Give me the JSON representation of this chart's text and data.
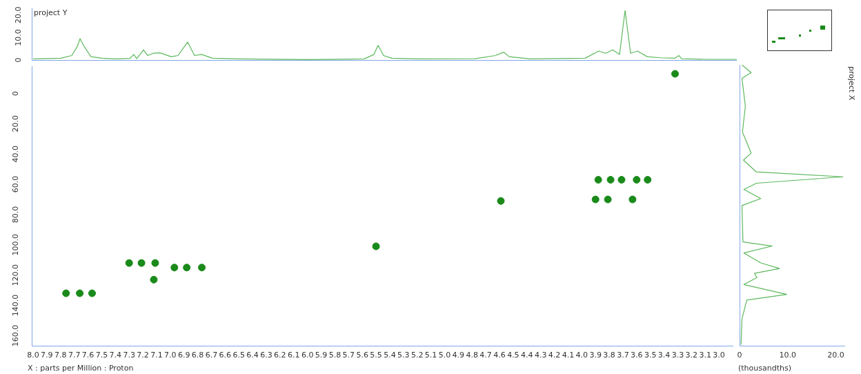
{
  "chart_data": [
    {
      "type": "line",
      "title": "project Y",
      "x": [
        8.0,
        7.8,
        7.72,
        7.68,
        7.66,
        7.63,
        7.58,
        7.5,
        7.4,
        7.3,
        7.27,
        7.25,
        7.2,
        7.17,
        7.13,
        7.08,
        7.0,
        6.95,
        6.88,
        6.83,
        6.78,
        6.7,
        6.5,
        6.0,
        5.6,
        5.53,
        5.5,
        5.46,
        5.4,
        5.2,
        4.8,
        4.65,
        4.59,
        4.55,
        4.4,
        4.0,
        3.9,
        3.85,
        3.8,
        3.75,
        3.71,
        3.67,
        3.62,
        3.55,
        3.45,
        3.35,
        3.32,
        3.3,
        3.1,
        2.9
      ],
      "series": [
        {
          "color": "#5cb85c",
          "values": [
            0.5,
            0.8,
            2,
            6,
            9.5,
            6,
            1.5,
            0.8,
            0.5,
            0.7,
            2.5,
            0.6,
            4.5,
            2,
            3,
            3.2,
            1.5,
            2,
            8,
            2,
            2.5,
            0.8,
            0.5,
            0.2,
            0.5,
            2.5,
            6.5,
            2,
            0.8,
            0.5,
            0.6,
            2,
            3.5,
            1.5,
            0.5,
            0.8,
            4,
            3,
            4.5,
            2.5,
            22,
            3,
            4,
            1.5,
            1,
            0.8,
            2,
            0.6,
            0.3,
            0.3
          ]
        }
      ],
      "xlim": [
        8.01,
        2.9
      ],
      "ylim": [
        0,
        23
      ],
      "yticks": [
        0,
        {
          "value": 10,
          "label": "10.0"
        },
        {
          "value": 20,
          "label": "20.0"
        }
      ],
      "tick_labels": "y",
      "grid": false,
      "legend": false,
      "marker": "none"
    },
    {
      "type": "scatter",
      "xlabel": "X : parts per Million : Proton",
      "x": [
        7.76,
        7.66,
        7.57,
        7.3,
        7.21,
        7.11,
        7.12,
        6.97,
        6.88,
        6.77,
        5.5,
        4.59,
        3.32,
        3.88,
        3.79,
        3.71,
        3.6,
        3.52,
        3.9,
        3.81,
        3.63
      ],
      "series": [
        {
          "color": "#1a8a1a",
          "values": [
            132,
            132,
            132,
            112,
            112,
            112,
            123,
            115,
            115,
            115,
            101,
            71,
            -13,
            57,
            57,
            57,
            57,
            57,
            70,
            70,
            70
          ]
        }
      ],
      "xlim": [
        8.01,
        2.9
      ],
      "xticks": [
        {
          "value": 8,
          "label": "8.0"
        },
        7.9,
        7.8,
        7.7,
        7.6,
        7.5,
        7.4,
        7.3,
        7.2,
        7.1,
        {
          "value": 7,
          "label": "7.0"
        },
        6.9,
        6.8,
        6.7,
        6.6,
        6.5,
        6.4,
        6.3,
        6.2,
        6.1,
        {
          "value": 6,
          "label": "6.0"
        },
        5.9,
        5.8,
        5.7,
        5.6,
        5.5,
        5.4,
        5.3,
        5.2,
        5.1,
        {
          "value": 5,
          "label": "5.0"
        },
        4.9,
        4.8,
        4.7,
        4.6,
        4.5,
        4.4,
        4.3,
        4.2,
        4.1,
        {
          "value": 4,
          "label": "4.0"
        },
        3.9,
        3.8,
        3.7,
        3.6,
        3.5,
        3.4,
        3.3,
        3.2,
        3.1,
        {
          "value": 3,
          "label": "3.0"
        }
      ],
      "ylim": [
        167,
        -18
      ],
      "yticks": [
        0,
        {
          "value": 20,
          "label": "20.0"
        },
        {
          "value": 40,
          "label": "40.0"
        },
        {
          "value": 60,
          "label": "60.0"
        },
        {
          "value": 80,
          "label": "80.0"
        },
        {
          "value": 100,
          "label": "100.0"
        },
        {
          "value": 120,
          "label": "120.0"
        },
        {
          "value": 140,
          "label": "140.0"
        },
        {
          "value": 160,
          "label": "160.0"
        }
      ],
      "grid": false,
      "legend": false,
      "marker": "circle"
    },
    {
      "type": "line",
      "orientation": "horizontal",
      "title": "project X",
      "xlabel": "(thousandths)",
      "x": [
        -18,
        -12.9,
        -9.2,
        9.2,
        26.2,
        40,
        44.6,
        52.4,
        55.6,
        59.8,
        63.9,
        69.9,
        74.5,
        98.4,
        101.1,
        105.7,
        112.2,
        115.9,
        119.1,
        121.8,
        126.4,
        132.9,
        136.6,
        149,
        166
      ],
      "series": [
        {
          "color": "#5cb85c",
          "values": [
            0.5,
            2.4,
            0.5,
            1.2,
            0.6,
            2.4,
            0.8,
            3.5,
            21.5,
            3.5,
            0.9,
            4.4,
            0.5,
            0.7,
            6.8,
            0.9,
            4.4,
            8.3,
            3.1,
            3.6,
            0.9,
            9.8,
            1.5,
            0.5,
            0.3
          ]
        }
      ],
      "xlim": [
        0,
        21.8
      ],
      "xticks": [
        0,
        {
          "value": 10,
          "label": "10.0"
        },
        {
          "value": 20,
          "label": "20.0"
        }
      ],
      "ylim": [
        167,
        -18
      ],
      "tick_labels": "x",
      "grid": false,
      "legend": false,
      "marker": "none"
    }
  ]
}
